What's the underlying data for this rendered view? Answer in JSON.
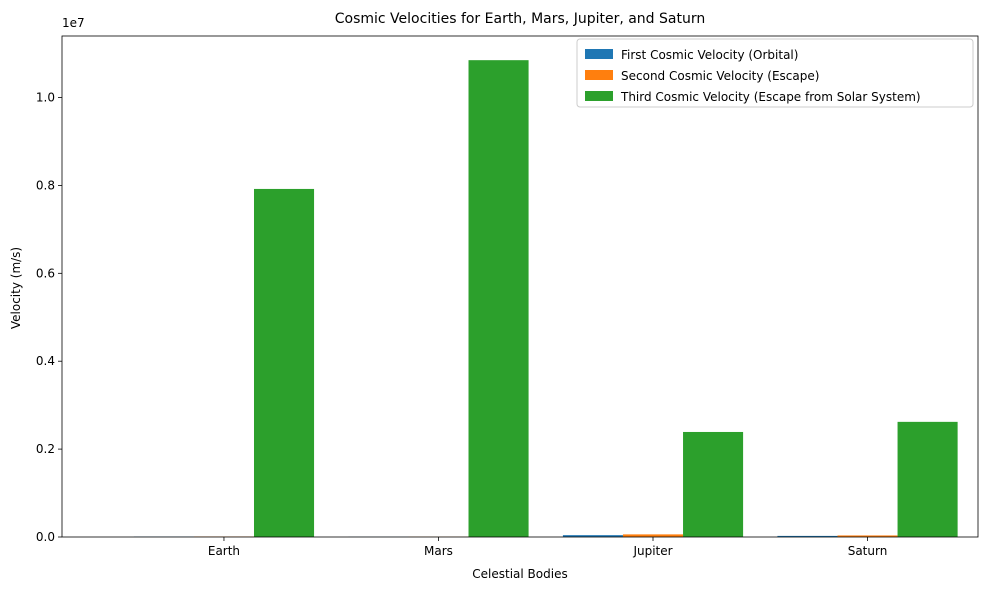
{
  "chart_data": {
    "type": "bar",
    "title": "Cosmic Velocities for Earth, Mars, Jupiter, and Saturn",
    "xlabel": "Celestial Bodies",
    "ylabel": "Velocity (m/s)",
    "y_offset_label": "1e7",
    "categories": [
      "Earth",
      "Mars",
      "Jupiter",
      "Saturn"
    ],
    "ylim": [
      0,
      11400000
    ],
    "y_ticks": [
      0,
      2000000,
      4000000,
      6000000,
      8000000,
      10000000
    ],
    "y_tick_labels": [
      "0.0",
      "0.2",
      "0.4",
      "0.6",
      "0.8",
      "1.0"
    ],
    "legend_position": "top-right",
    "grid": false,
    "series": [
      {
        "name": "First Cosmic Velocity (Orbital)",
        "color": "#1f77b4",
        "values": [
          7900,
          3550,
          42100,
          25100
        ]
      },
      {
        "name": "Second Cosmic Velocity (Escape)",
        "color": "#ff7f0e",
        "values": [
          11200,
          5030,
          59500,
          35500
        ]
      },
      {
        "name": "Third Cosmic Velocity (Escape from Solar System)",
        "color": "#2ca02c",
        "values": [
          7920000,
          10850000,
          2390000,
          2620000
        ]
      }
    ]
  }
}
